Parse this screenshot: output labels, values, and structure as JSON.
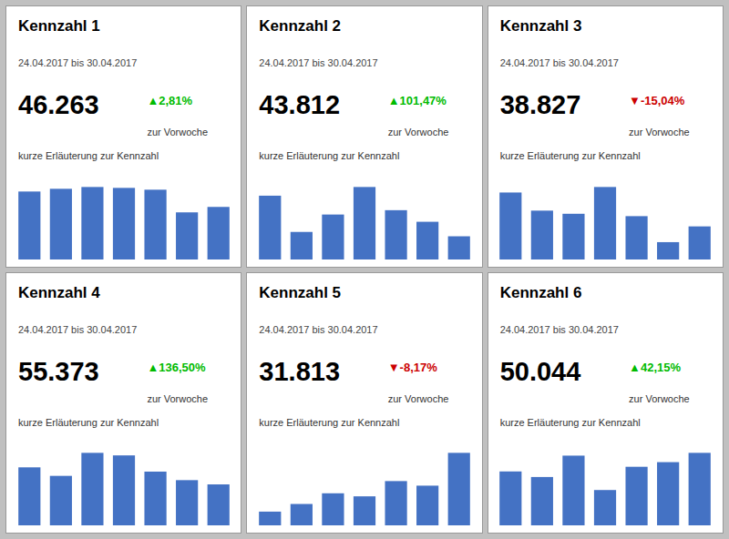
{
  "chart_data": [
    {
      "type": "bar",
      "title": "Kennzahl 1",
      "subtitle": "24.04.2017  bis  30.04.2017",
      "annotations": [
        {
          "text": "46.263"
        },
        {
          "text": "▲2,81%",
          "color": "#00bb00"
        },
        {
          "text": "zur Vorwoche"
        },
        {
          "text": "kurze Erläuterung zur Kennzahl"
        }
      ],
      "values": [
        75,
        78,
        80,
        79,
        77,
        52,
        58
      ],
      "color": "#4472c4",
      "ylim": [
        0,
        86.4
      ],
      "tick_labels": false,
      "grid": false
    },
    {
      "type": "bar",
      "title": "Kennzahl 2",
      "subtitle": "24.04.2017  bis  30.04.2017",
      "annotations": [
        {
          "text": "43.812"
        },
        {
          "text": "▲101,47%",
          "color": "#00bb00"
        },
        {
          "text": "zur Vorwoche"
        },
        {
          "text": "kurze Erläuterung zur Kennzahl"
        }
      ],
      "values": [
        88,
        38,
        62,
        100,
        68,
        52,
        32
      ],
      "color": "#4472c4",
      "ylim": [
        0,
        108
      ],
      "tick_labels": false,
      "grid": false
    },
    {
      "type": "bar",
      "title": "Kennzahl 3",
      "subtitle": "24.04.2017  bis  30.04.2017",
      "annotations": [
        {
          "text": "38.827"
        },
        {
          "text": "▼-15,04%",
          "color": "#cc0000"
        },
        {
          "text": "zur Vorwoche"
        },
        {
          "text": "kurze Erläuterung zur Kennzahl"
        }
      ],
      "values": [
        85,
        62,
        58,
        92,
        55,
        22,
        42
      ],
      "color": "#4472c4",
      "ylim": [
        0,
        99.36
      ],
      "tick_labels": false,
      "grid": false
    },
    {
      "type": "bar",
      "title": "Kennzahl 4",
      "subtitle": "24.04.2017  bis  30.04.2017",
      "annotations": [
        {
          "text": "55.373"
        },
        {
          "text": "▲136,50%",
          "color": "#00bb00"
        },
        {
          "text": "zur Vorwoche"
        },
        {
          "text": "kurze Erläuterung zur Kennzahl"
        }
      ],
      "values": [
        68,
        58,
        85,
        82,
        63,
        53,
        48
      ],
      "color": "#4472c4",
      "ylim": [
        0,
        91.8
      ],
      "tick_labels": false,
      "grid": false
    },
    {
      "type": "bar",
      "title": "Kennzahl 5",
      "subtitle": "24.04.2017  bis  30.04.2017",
      "annotations": [
        {
          "text": "31.813"
        },
        {
          "text": "▼-8,17%",
          "color": "#cc0000"
        },
        {
          "text": "zur Vorwoche"
        },
        {
          "text": "kurze Erläuterung zur Kennzahl"
        }
      ],
      "values": [
        18,
        28,
        42,
        38,
        58,
        52,
        95
      ],
      "color": "#4472c4",
      "ylim": [
        0,
        102.6
      ],
      "tick_labels": false,
      "grid": false
    },
    {
      "type": "bar",
      "title": "Kennzahl 6",
      "subtitle": "24.04.2017  bis  30.04.2017",
      "annotations": [
        {
          "text": "50.044"
        },
        {
          "text": "▲42,15%",
          "color": "#00bb00"
        },
        {
          "text": "zur Vorwoche"
        },
        {
          "text": "kurze Erläuterung zur Kennzahl"
        }
      ],
      "values": [
        58,
        52,
        75,
        38,
        63,
        68,
        78
      ],
      "color": "#4472c4",
      "ylim": [
        0,
        84.24
      ],
      "tick_labels": false,
      "grid": false
    }
  ]
}
